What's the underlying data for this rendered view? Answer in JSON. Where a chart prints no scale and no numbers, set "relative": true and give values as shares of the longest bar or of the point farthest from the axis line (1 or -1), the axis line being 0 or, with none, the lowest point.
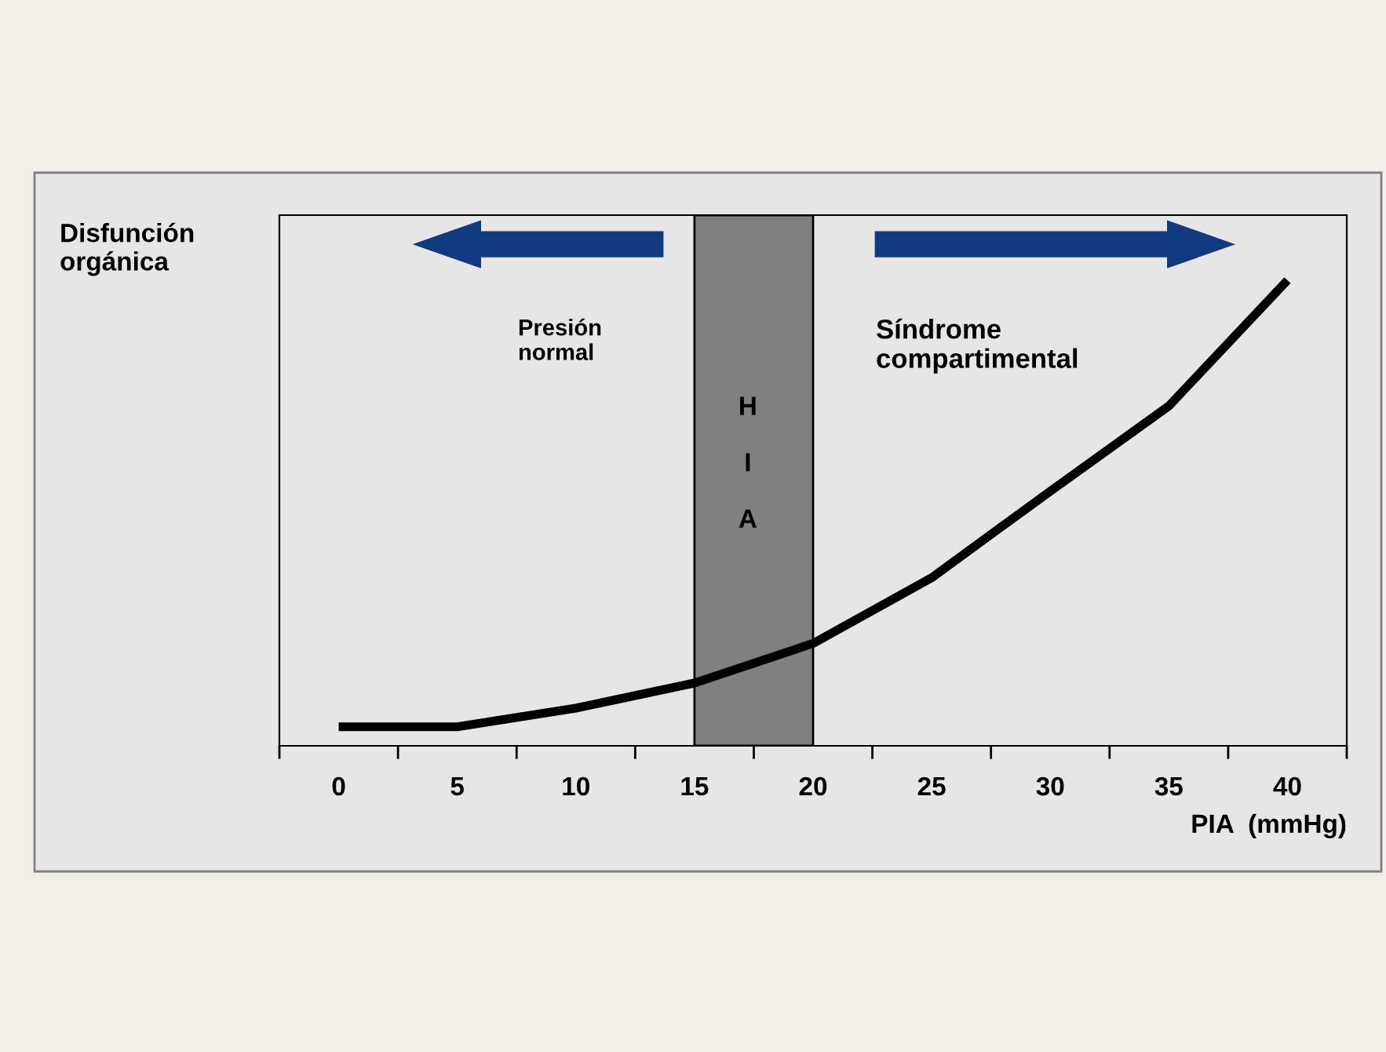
{
  "chart_data": {
    "type": "line",
    "relative": true,
    "xlabel": "PIA  (mmHg)",
    "ylabel": "Disfunción\norgánica",
    "categories": [
      "0",
      "5",
      "10",
      "15",
      "20",
      "25",
      "30",
      "35",
      "40"
    ],
    "series": [
      {
        "color": "#000000",
        "values": [
          0.041,
          0.041,
          0.081,
          0.135,
          0.22,
          0.361,
          0.547,
          0.73,
          1.0
        ]
      }
    ],
    "bands": [
      {
        "axis": "x",
        "from": "15",
        "to": "20",
        "label": "H\n\nI\n\nA",
        "color": "#808080"
      }
    ],
    "annotations": [
      "Presión\nnormal",
      "Síndrome\ncompartimental"
    ],
    "grid": false,
    "legend": false,
    "marker": "none",
    "line_style": "solid"
  }
}
